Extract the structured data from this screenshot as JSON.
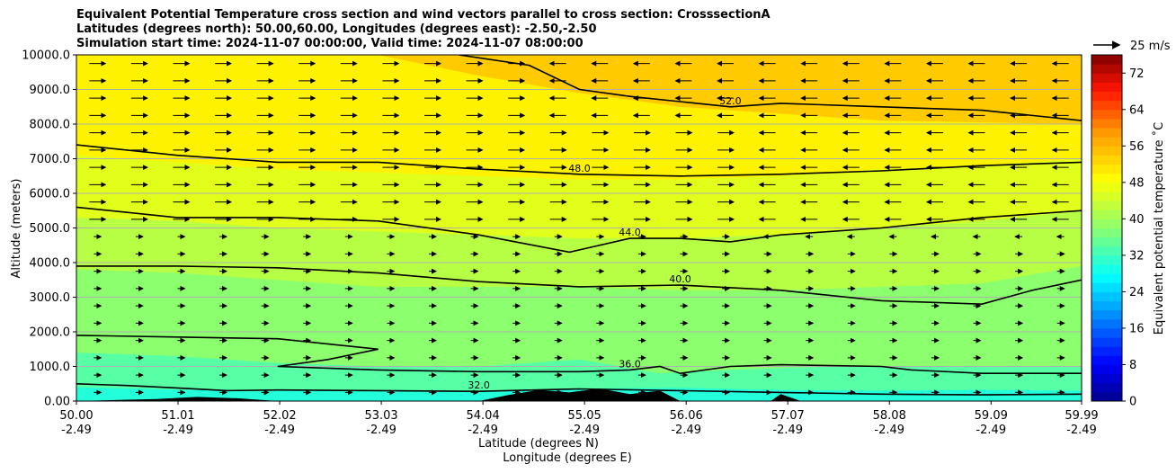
{
  "chart_data": {
    "type": "contour",
    "title_lines": [
      "Equivalent Potential Temperature cross section and wind vectors parallel to cross section: CrosssectionA",
      "Latitudes (degrees north): 50.00,60.00, Longitudes (degrees east): -2.50,-2.50",
      "Simulation start time: 2024-11-07 00:00:00, Valid time: 2024-11-07 08:00:00"
    ],
    "ylabel": "Altitude (meters)",
    "xlabel_lines": [
      "Latitude (degrees N)",
      "Longitude (degrees E)"
    ],
    "xlim": [
      50.0,
      59.99
    ],
    "ylim": [
      0,
      10000
    ],
    "grid": "horizontal",
    "x_ticks": [
      {
        "lat": "50.00",
        "lon": "-2.49",
        "v": 50.0
      },
      {
        "lat": "51.01",
        "lon": "-2.49",
        "v": 51.01
      },
      {
        "lat": "52.02",
        "lon": "-2.49",
        "v": 52.02
      },
      {
        "lat": "53.03",
        "lon": "-2.49",
        "v": 53.03
      },
      {
        "lat": "54.04",
        "lon": "-2.49",
        "v": 54.04
      },
      {
        "lat": "55.05",
        "lon": "-2.49",
        "v": 55.05
      },
      {
        "lat": "56.06",
        "lon": "-2.49",
        "v": 56.06
      },
      {
        "lat": "57.07",
        "lon": "-2.49",
        "v": 57.07
      },
      {
        "lat": "58.08",
        "lon": "-2.49",
        "v": 58.08
      },
      {
        "lat": "59.09",
        "lon": "-2.49",
        "v": 59.09
      },
      {
        "lat": "59.99",
        "lon": "-2.49",
        "v": 59.99
      }
    ],
    "y_ticks": [
      {
        "label": "0.00",
        "v": 0
      },
      {
        "label": "1000.0",
        "v": 1000
      },
      {
        "label": "2000.0",
        "v": 2000
      },
      {
        "label": "3000.0",
        "v": 3000
      },
      {
        "label": "4000.0",
        "v": 4000
      },
      {
        "label": "5000.0",
        "v": 5000
      },
      {
        "label": "6000.0",
        "v": 6000
      },
      {
        "label": "7000.0",
        "v": 7000
      },
      {
        "label": "8000.0",
        "v": 8000
      },
      {
        "label": "9000.0",
        "v": 9000
      },
      {
        "label": "10000.0",
        "v": 10000
      }
    ],
    "colorbar": {
      "label": "Equivalent potential temperature ˚C",
      "range": [
        0,
        76
      ],
      "ticks": [
        "0",
        "8",
        "16",
        "24",
        "32",
        "40",
        "48",
        "56",
        "64",
        "72"
      ],
      "tick_values": [
        0,
        8,
        16,
        24,
        32,
        40,
        48,
        56,
        64,
        72
      ]
    },
    "wind_key": {
      "label": "25 m/s"
    },
    "field_bands": [
      {
        "thetae": 30,
        "top": [
          [
            50.0,
            400
          ],
          [
            51.7,
            280
          ],
          [
            53.0,
            320
          ],
          [
            54.0,
            300
          ],
          [
            55.0,
            360
          ],
          [
            56.0,
            380
          ],
          [
            57.0,
            320
          ],
          [
            58.0,
            300
          ],
          [
            59.0,
            320
          ],
          [
            59.99,
            300
          ]
        ]
      },
      {
        "thetae": 34,
        "top": [
          [
            50.0,
            1400
          ],
          [
            51.0,
            1300
          ],
          [
            52.0,
            1100
          ],
          [
            53.0,
            1000
          ],
          [
            54.0,
            1000
          ],
          [
            55.0,
            1200
          ],
          [
            55.8,
            800
          ],
          [
            56.5,
            900
          ],
          [
            57.5,
            1000
          ],
          [
            58.5,
            1000
          ],
          [
            59.99,
            1000
          ]
        ]
      },
      {
        "thetae": 38,
        "top": [
          [
            50.0,
            3800
          ],
          [
            51.0,
            3700
          ],
          [
            52.0,
            3500
          ],
          [
            53.0,
            3300
          ],
          [
            54.0,
            3300
          ],
          [
            55.0,
            3300
          ],
          [
            56.0,
            3200
          ],
          [
            57.0,
            3200
          ],
          [
            58.0,
            3300
          ],
          [
            59.0,
            3400
          ],
          [
            59.99,
            3900
          ]
        ]
      },
      {
        "thetae": 42,
        "top": [
          [
            50.0,
            5300
          ],
          [
            51.0,
            5200
          ],
          [
            52.0,
            5000
          ],
          [
            53.0,
            4900
          ],
          [
            54.0,
            4800
          ],
          [
            55.0,
            4700
          ],
          [
            56.0,
            4700
          ],
          [
            57.0,
            4800
          ],
          [
            58.0,
            5000
          ],
          [
            59.0,
            5200
          ],
          [
            59.99,
            5500
          ]
        ]
      },
      {
        "thetae": 46,
        "top": [
          [
            50.0,
            7100
          ],
          [
            51.0,
            6900
          ],
          [
            52.0,
            6700
          ],
          [
            53.0,
            6600
          ],
          [
            54.0,
            6500
          ],
          [
            55.0,
            6400
          ],
          [
            56.0,
            6400
          ],
          [
            57.0,
            6500
          ],
          [
            58.0,
            6700
          ],
          [
            59.0,
            6800
          ],
          [
            59.99,
            7000
          ]
        ]
      },
      {
        "thetae": 50,
        "top": [
          [
            50.0,
            10000
          ],
          [
            53.0,
            10000
          ],
          [
            54.0,
            9400
          ],
          [
            55.0,
            8900
          ],
          [
            56.0,
            8500
          ],
          [
            57.0,
            8300
          ],
          [
            58.0,
            8100
          ],
          [
            59.99,
            8000
          ]
        ]
      },
      {
        "thetae": 54,
        "top": [
          [
            50.0,
            10000
          ],
          [
            59.99,
            10000
          ]
        ]
      }
    ],
    "contours": [
      {
        "level": "32.0",
        "points": [
          [
            50.0,
            500
          ],
          [
            50.5,
            450
          ],
          [
            51.0,
            380
          ],
          [
            51.5,
            300
          ],
          [
            52.0,
            320
          ],
          [
            53.0,
            300
          ],
          [
            54.0,
            280
          ],
          [
            55.0,
            350
          ],
          [
            56.0,
            300
          ],
          [
            57.0,
            250
          ],
          [
            58.0,
            200
          ],
          [
            59.0,
            180
          ],
          [
            59.99,
            200
          ]
        ]
      },
      {
        "level": "36.0",
        "points": [
          [
            50.0,
            1900
          ],
          [
            51.0,
            1850
          ],
          [
            52.0,
            1800
          ],
          [
            53.0,
            1500
          ],
          [
            52.5,
            1200
          ],
          [
            52.0,
            1000
          ],
          [
            53.0,
            900
          ],
          [
            54.0,
            850
          ],
          [
            55.0,
            850
          ],
          [
            55.5,
            900
          ],
          [
            55.8,
            1000
          ],
          [
            56.0,
            800
          ],
          [
            56.5,
            1000
          ],
          [
            57.0,
            1050
          ],
          [
            58.0,
            1000
          ],
          [
            58.3,
            900
          ],
          [
            59.0,
            800
          ],
          [
            59.99,
            800
          ]
        ]
      },
      {
        "level": "40.0",
        "points": [
          [
            50.0,
            3900
          ],
          [
            51.0,
            3900
          ],
          [
            52.0,
            3850
          ],
          [
            53.0,
            3700
          ],
          [
            54.0,
            3450
          ],
          [
            55.0,
            3300
          ],
          [
            56.0,
            3350
          ],
          [
            57.0,
            3200
          ],
          [
            58.0,
            2900
          ],
          [
            59.0,
            2800
          ],
          [
            59.5,
            3200
          ],
          [
            59.99,
            3500
          ]
        ]
      },
      {
        "level": "44.0",
        "points": [
          [
            50.0,
            5600
          ],
          [
            51.0,
            5300
          ],
          [
            52.0,
            5300
          ],
          [
            53.0,
            5200
          ],
          [
            54.0,
            4800
          ],
          [
            54.9,
            4300
          ],
          [
            55.5,
            4700
          ],
          [
            56.0,
            4700
          ],
          [
            56.5,
            4600
          ],
          [
            57.0,
            4800
          ],
          [
            58.0,
            5000
          ],
          [
            59.0,
            5300
          ],
          [
            59.99,
            5500
          ]
        ]
      },
      {
        "level": "48.0",
        "points": [
          [
            50.0,
            7400
          ],
          [
            51.0,
            7100
          ],
          [
            52.0,
            6900
          ],
          [
            53.0,
            6900
          ],
          [
            54.0,
            6700
          ],
          [
            55.0,
            6550
          ],
          [
            56.0,
            6500
          ],
          [
            57.0,
            6550
          ],
          [
            58.0,
            6650
          ],
          [
            59.0,
            6800
          ],
          [
            59.99,
            6900
          ]
        ]
      },
      {
        "level": "52.0",
        "points": [
          [
            53.8,
            10000
          ],
          [
            54.5,
            9700
          ],
          [
            55.0,
            9000
          ],
          [
            55.5,
            8800
          ],
          [
            56.0,
            8650
          ],
          [
            56.5,
            8500
          ],
          [
            57.0,
            8600
          ],
          [
            58.0,
            8500
          ],
          [
            59.0,
            8400
          ],
          [
            59.99,
            8100
          ]
        ]
      }
    ]
  }
}
